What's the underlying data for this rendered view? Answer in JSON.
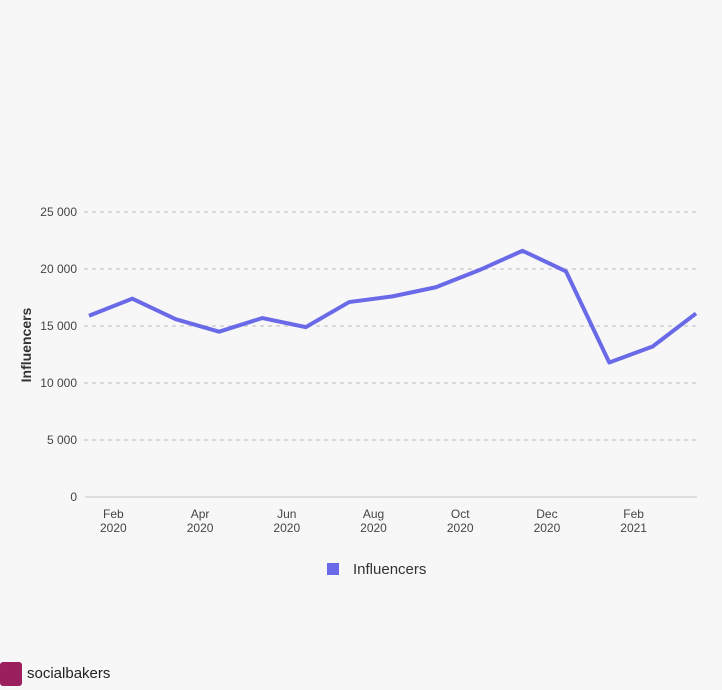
{
  "chart_data": {
    "type": "line",
    "y_label": "Influencers",
    "categories": [
      null,
      "Feb 2020",
      null,
      "Apr 2020",
      null,
      "Jun 2020",
      null,
      "Aug 2020",
      null,
      "Oct 2020",
      null,
      "Dec 2020",
      null,
      "Feb 2021",
      null
    ],
    "series": [
      {
        "name": "Influencers",
        "color": "#6a6ae8",
        "values": [
          15900,
          17400,
          15600,
          14500,
          15700,
          14900,
          17100,
          17600,
          18400,
          19900,
          21600,
          19800,
          11800,
          13200,
          16100
        ]
      }
    ],
    "ylim": [
      0,
      25000
    ],
    "yticks": [
      0,
      {
        "value": 5000,
        "label": "5 000"
      },
      {
        "value": 10000,
        "label": "10 000"
      },
      {
        "value": 15000,
        "label": "15 000"
      },
      {
        "value": 20000,
        "label": "20 000"
      },
      {
        "value": 25000,
        "label": "25 000"
      }
    ],
    "grid": true
  },
  "footer": {
    "brand": "socialbakers"
  }
}
